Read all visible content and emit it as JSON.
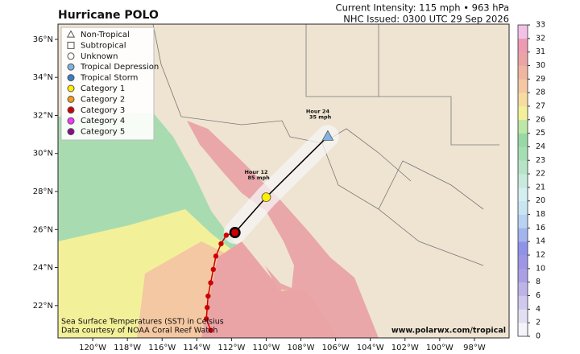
{
  "title": "Hurricane POLO",
  "intensity": "Current Intensity: 115 mph • 963 hPa",
  "issued": "NHC Issued: 0300 UTC 29 Sep 2026",
  "map": {
    "xlim": [
      -122,
      -96
    ],
    "ylim": [
      20.3,
      36.8
    ],
    "xticks": [
      {
        "value": -120,
        "label": "120°W"
      },
      {
        "value": -118,
        "label": "118°W"
      },
      {
        "value": -116,
        "label": "116°W"
      },
      {
        "value": -114,
        "label": "114°W"
      },
      {
        "value": -112,
        "label": "112°W"
      },
      {
        "value": -110,
        "label": "110°W"
      },
      {
        "value": -108,
        "label": "108°W"
      },
      {
        "value": -106,
        "label": "106°W"
      },
      {
        "value": -104,
        "label": "104°W"
      },
      {
        "value": -102,
        "label": "102°W"
      },
      {
        "value": -100,
        "label": "100°W"
      },
      {
        "value": -98,
        "label": "98°W"
      }
    ],
    "yticks": [
      {
        "value": 22,
        "label": "22°N"
      },
      {
        "value": 24,
        "label": "24°N"
      },
      {
        "value": 26,
        "label": "26°N"
      },
      {
        "value": 28,
        "label": "28°N"
      },
      {
        "value": 30,
        "label": "30°N"
      },
      {
        "value": 32,
        "label": "32°N"
      },
      {
        "value": 34,
        "label": "34°N"
      },
      {
        "value": 36,
        "label": "36°N"
      }
    ]
  },
  "legend": [
    {
      "label": "Non-Tropical",
      "marker": "triangle"
    },
    {
      "label": "Subtropical",
      "marker": "square"
    },
    {
      "label": "Unknown",
      "marker": "circle"
    },
    {
      "label": "Tropical Depression",
      "marker": "circle",
      "color": "#7fb3e0"
    },
    {
      "label": "Tropical Storm",
      "marker": "circle",
      "color": "#3a7cc8"
    },
    {
      "label": "Category 1",
      "marker": "circle",
      "color": "#ffee00"
    },
    {
      "label": "Category 2",
      "marker": "circle",
      "color": "#f59a1a"
    },
    {
      "label": "Category 3",
      "marker": "circle",
      "color": "#cc0000"
    },
    {
      "label": "Category 4",
      "marker": "circle",
      "color": "#ff33ff"
    },
    {
      "label": "Category 5",
      "marker": "circle",
      "color": "#8b0a8b"
    }
  ],
  "past_track": {
    "color": "#cc0000",
    "lon": [
      -113.2,
      -113.45,
      -113.4,
      -113.35,
      -113.2,
      -113.05,
      -112.9,
      -112.6,
      -112.3
    ],
    "lat": [
      20.7,
      21.3,
      21.9,
      22.5,
      23.2,
      23.9,
      24.6,
      25.25,
      25.7
    ]
  },
  "forecast": [
    {
      "lon": -111.8,
      "lat": 25.84,
      "color": "#cc0000",
      "marker": "circle",
      "current": true
    },
    {
      "lon": -110.0,
      "lat": 27.7,
      "color": "#ffee00",
      "marker": "circle",
      "label": "Hour 12",
      "wind": "85 mph"
    },
    {
      "lon": -106.45,
      "lat": 30.9,
      "color": "#7fb3e0",
      "marker": "triangle",
      "label": "Hour 24",
      "wind": "35 mph"
    }
  ],
  "colorbar": {
    "ticks": [
      0,
      2,
      4,
      6,
      8,
      10,
      12,
      14,
      16,
      18,
      20,
      21,
      22,
      23,
      24,
      25,
      26,
      27,
      28,
      29,
      30,
      31,
      32,
      33
    ],
    "colors": [
      "#f4f4fa",
      "#e2dff2",
      "#cfc9ec",
      "#bdb3e8",
      "#aa9fe4",
      "#9d96e6",
      "#8f92e8",
      "#a3b4ee",
      "#b7d2f2",
      "#c8e6f2",
      "#d4efef",
      "#c8eadc",
      "#b6e4c6",
      "#a6deb4",
      "#98d8a4",
      "#bde7a6",
      "#f3f09a",
      "#f7dca0",
      "#f4c8a2",
      "#efb5a0",
      "#eba4a6",
      "#ee9ab2",
      "#f2c2e6"
    ]
  },
  "footer": {
    "sst": "Sea Surface Temperatures (SST) in Celsius",
    "credit": "Data courtesy of NOAA Coral Reef Watch",
    "url": "www.polarwx.com/tropical"
  }
}
